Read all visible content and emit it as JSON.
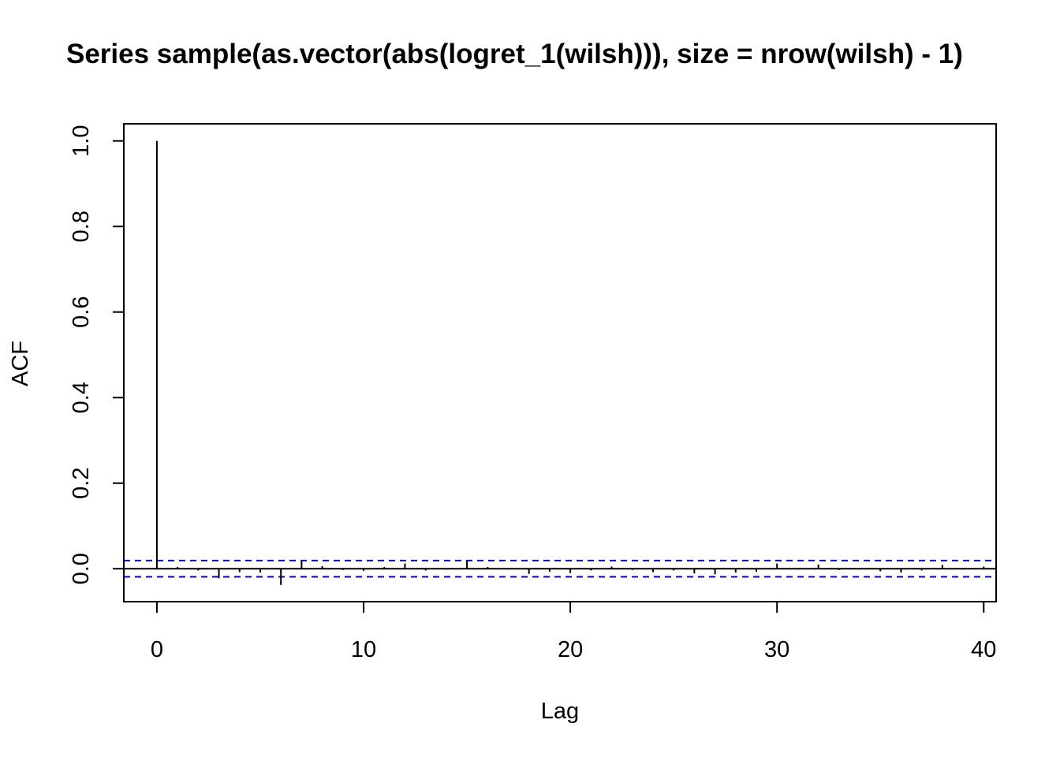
{
  "chart_data": {
    "type": "bar",
    "title": "Series  sample(as.vector(abs(logret_1(wilsh))), size = nrow(wilsh) - 1)",
    "xlabel": "Lag",
    "ylabel": "ACF",
    "xlim": [
      -1.6,
      40.6
    ],
    "ylim": [
      -0.077,
      1.04
    ],
    "x_ticks": [
      0,
      10,
      20,
      30,
      40
    ],
    "x_tick_labels": [
      "0",
      "10",
      "20",
      "30",
      "40"
    ],
    "y_ticks": [
      0.0,
      0.2,
      0.4,
      0.6,
      0.8,
      1.0
    ],
    "y_tick_labels": [
      "0.0",
      "0.2",
      "0.4",
      "0.6",
      "0.8",
      "1.0"
    ],
    "confidence_bound": 0.019,
    "series": [
      {
        "lags": [
          0,
          1,
          2,
          3,
          4,
          5,
          6,
          7,
          8,
          9,
          10,
          11,
          12,
          13,
          14,
          15,
          16,
          17,
          18,
          19,
          20,
          21,
          22,
          23,
          24,
          25,
          26,
          27,
          28,
          29,
          30,
          31,
          32,
          33,
          34,
          35,
          36,
          37,
          38,
          39,
          40
        ],
        "values": [
          1.0,
          0.004,
          -0.004,
          -0.022,
          -0.008,
          -0.009,
          -0.038,
          0.02,
          0.006,
          -0.003,
          -0.005,
          0.004,
          0.012,
          -0.004,
          -0.002,
          0.018,
          0.004,
          -0.002,
          -0.012,
          -0.007,
          -0.01,
          -0.004,
          0.005,
          -0.003,
          -0.008,
          -0.004,
          -0.011,
          -0.013,
          -0.009,
          -0.007,
          0.012,
          -0.002,
          0.01,
          -0.003,
          -0.002,
          -0.006,
          -0.009,
          -0.004,
          0.009,
          -0.002,
          0.005
        ]
      }
    ],
    "colors": {
      "bars": "#000000",
      "confidence_lines": "#0000cc",
      "frame": "#000000"
    }
  }
}
